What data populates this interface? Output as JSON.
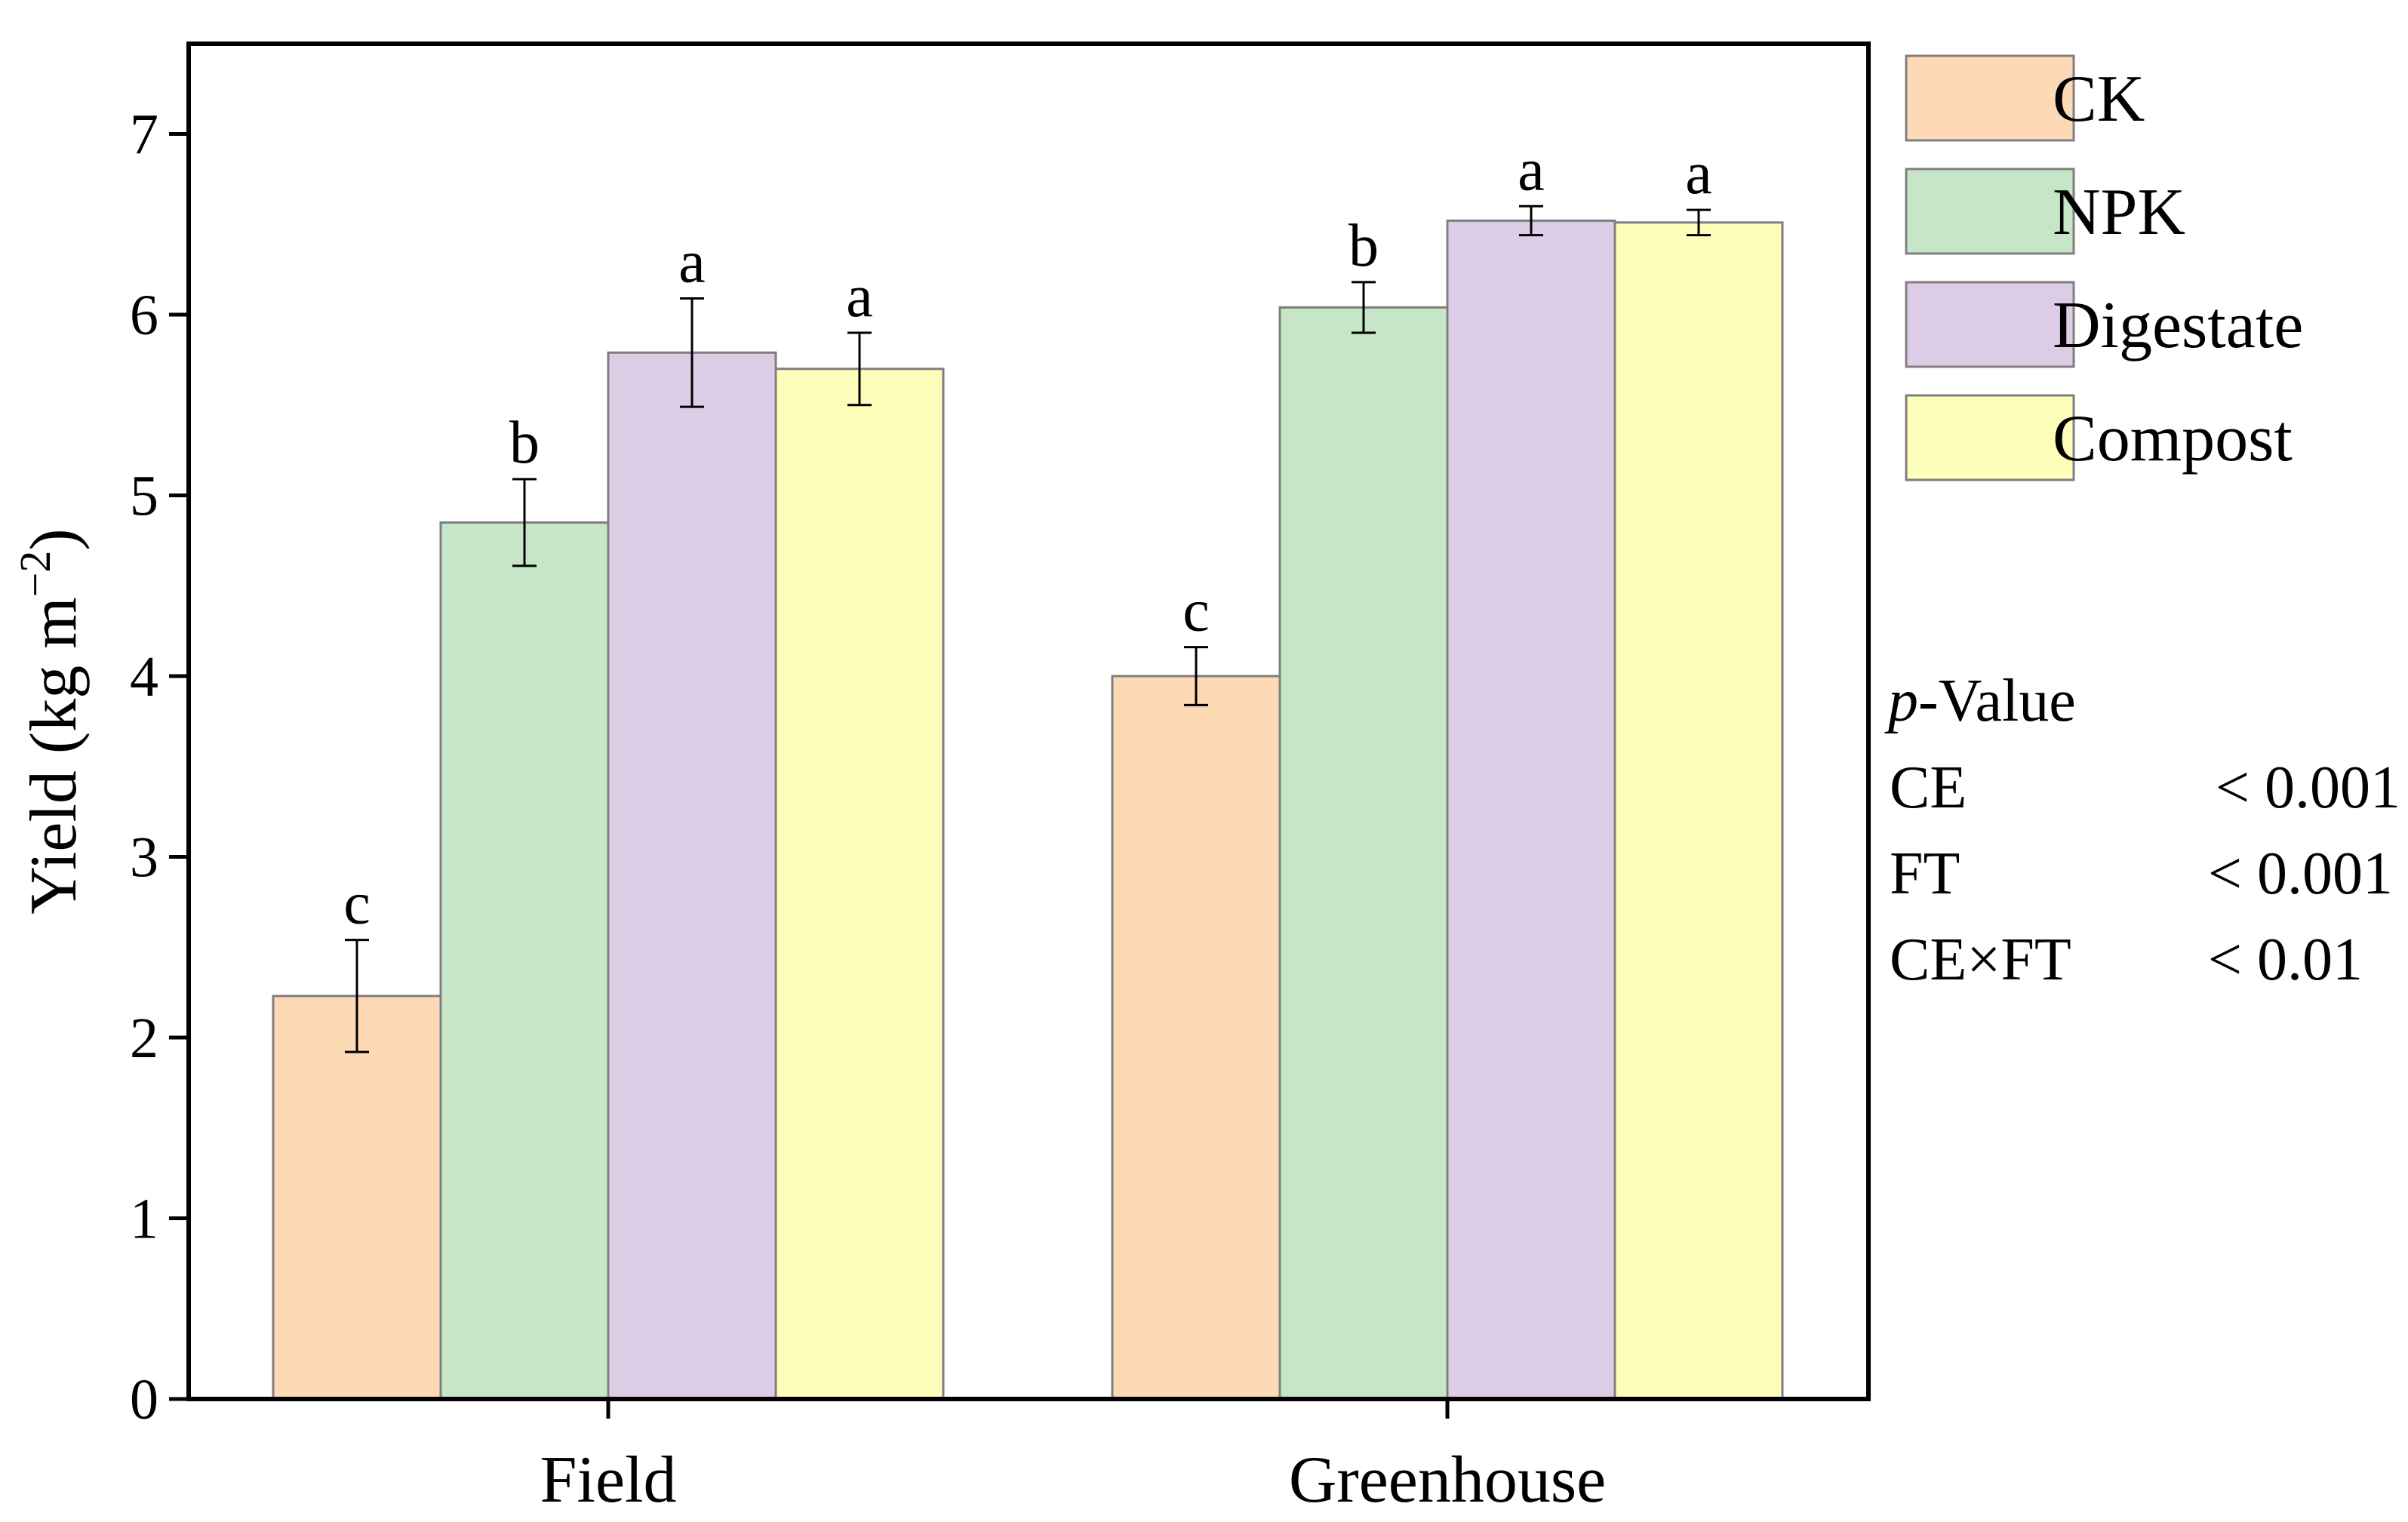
{
  "chart_data": {
    "type": "bar",
    "categories": [
      "Field",
      "Greenhouse"
    ],
    "series": [
      {
        "name": "CK",
        "color": "#fdd9b5",
        "values": [
          2.23,
          4.0
        ],
        "errors": [
          0.31,
          0.16
        ],
        "letters": [
          "c",
          "c"
        ]
      },
      {
        "name": "NPK",
        "color": "#c7e5c7",
        "values": [
          4.85,
          6.04
        ],
        "errors": [
          0.24,
          0.14
        ],
        "letters": [
          "b",
          "b"
        ]
      },
      {
        "name": "Digestate",
        "color": "#dccce6",
        "values": [
          5.79,
          6.52
        ],
        "errors": [
          0.3,
          0.08
        ],
        "letters": [
          "a",
          "a"
        ]
      },
      {
        "name": "Compost",
        "color": "#fefebb",
        "values": [
          5.7,
          6.51
        ],
        "errors": [
          0.2,
          0.07
        ],
        "letters": [
          "a",
          "a"
        ]
      }
    ],
    "ylabel_main": "Yield (kg m",
    "ylabel_superscript": "−2",
    "ylabel_close": ")",
    "ylim": [
      0,
      7.5
    ],
    "yticks": [
      0,
      1,
      2,
      3,
      4,
      5,
      6,
      7
    ],
    "legend_position": "top-right outside",
    "p_value": {
      "title_italic": "p",
      "title_rest": "-Value",
      "rows": [
        {
          "term": "CE",
          "value": "< 0.001"
        },
        {
          "term": "FT",
          "value": "< 0.001"
        },
        {
          "term": "CE×FT",
          "value": "< 0.01"
        }
      ]
    }
  }
}
